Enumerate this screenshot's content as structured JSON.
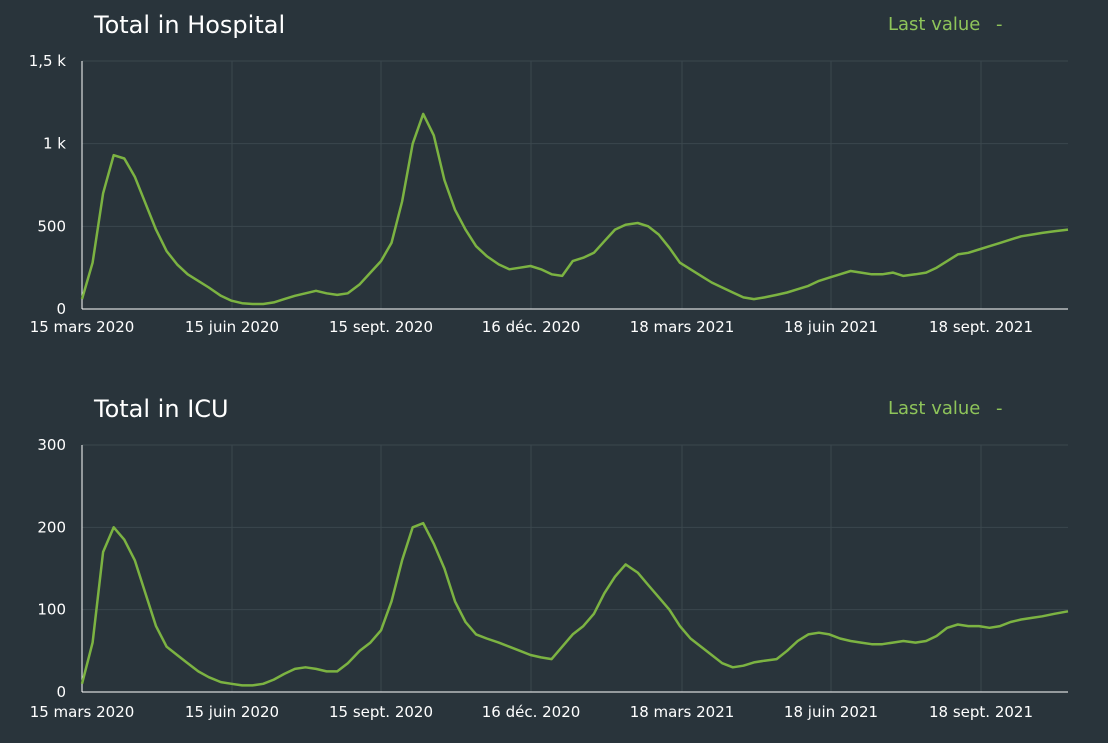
{
  "chart_data": [
    {
      "type": "line",
      "title": "Total in Hospital",
      "legend": {
        "label": "Last value",
        "value": "-"
      },
      "xlabel": "",
      "ylabel": "",
      "x_ticks": [
        "15 mars 2020",
        "15 juin 2020",
        "15 sept. 2020",
        "16 déc. 2020",
        "18 mars 2021",
        "18 juin 2021",
        "18 sept. 2021"
      ],
      "y_ticks": [
        {
          "value": 0,
          "label": "0"
        },
        {
          "value": 500,
          "label": "500"
        },
        {
          "value": 1000,
          "label": "1 k"
        },
        {
          "value": 1500,
          "label": "1,5 k"
        }
      ],
      "ylim": [
        0,
        1500
      ],
      "xlim_days": [
        0,
        653
      ],
      "series": [
        {
          "name": "Total in Hospital",
          "x_days": [
            0,
            7,
            14,
            21,
            28,
            35,
            42,
            49,
            56,
            63,
            70,
            77,
            84,
            92,
            99,
            106,
            113,
            120,
            127,
            134,
            141,
            148,
            155,
            162,
            169,
            176,
            184,
            191,
            198,
            205,
            212,
            219,
            226,
            233,
            240,
            247,
            254,
            261,
            268,
            276,
            283,
            290,
            297,
            304,
            311,
            318,
            325,
            332,
            339,
            346,
            353,
            360,
            368,
            375,
            382,
            389,
            396,
            403,
            410,
            417,
            424,
            431,
            438,
            445,
            452,
            460,
            467,
            474,
            481,
            488,
            495,
            502,
            509,
            516,
            523,
            530,
            537,
            544,
            552,
            559,
            566,
            573,
            580,
            587,
            594,
            601,
            608,
            615,
            622,
            629,
            636,
            644,
            653
          ],
          "values": [
            60,
            280,
            700,
            930,
            910,
            800,
            640,
            480,
            350,
            270,
            210,
            170,
            130,
            80,
            50,
            35,
            30,
            30,
            40,
            60,
            80,
            95,
            110,
            95,
            85,
            95,
            150,
            220,
            290,
            400,
            650,
            1000,
            1180,
            1050,
            780,
            600,
            480,
            380,
            320,
            270,
            240,
            250,
            260,
            240,
            210,
            200,
            290,
            310,
            340,
            410,
            480,
            510,
            520,
            500,
            450,
            370,
            280,
            240,
            200,
            160,
            130,
            100,
            70,
            60,
            70,
            85,
            100,
            120,
            140,
            170,
            190,
            210,
            230,
            220,
            210,
            210,
            220,
            200,
            210,
            220,
            250,
            290,
            330,
            340,
            360,
            380,
            400,
            420,
            440,
            450,
            460,
            470,
            480
          ]
        }
      ]
    },
    {
      "type": "line",
      "title": "Total in ICU",
      "legend": {
        "label": "Last value",
        "value": "-"
      },
      "xlabel": "",
      "ylabel": "",
      "x_ticks": [
        "15 mars 2020",
        "15 juin 2020",
        "15 sept. 2020",
        "16 déc. 2020",
        "18 mars 2021",
        "18 juin 2021",
        "18 sept. 2021"
      ],
      "y_ticks": [
        {
          "value": 0,
          "label": "0"
        },
        {
          "value": 100,
          "label": "100"
        },
        {
          "value": 200,
          "label": "200"
        },
        {
          "value": 300,
          "label": "300"
        }
      ],
      "ylim": [
        0,
        300
      ],
      "xlim_days": [
        0,
        653
      ],
      "series": [
        {
          "name": "Total in ICU",
          "x_days": [
            0,
            7,
            14,
            21,
            28,
            35,
            42,
            49,
            56,
            63,
            70,
            77,
            84,
            92,
            99,
            106,
            113,
            120,
            127,
            134,
            141,
            148,
            155,
            162,
            169,
            176,
            184,
            191,
            198,
            205,
            212,
            219,
            226,
            233,
            240,
            247,
            254,
            261,
            268,
            276,
            283,
            290,
            297,
            304,
            311,
            318,
            325,
            332,
            339,
            346,
            353,
            360,
            368,
            375,
            382,
            389,
            396,
            403,
            410,
            417,
            424,
            431,
            438,
            445,
            452,
            460,
            467,
            474,
            481,
            488,
            495,
            502,
            509,
            516,
            523,
            530,
            537,
            544,
            552,
            559,
            566,
            573,
            580,
            587,
            594,
            601,
            608,
            615,
            622,
            629,
            636,
            644,
            653
          ],
          "values": [
            10,
            60,
            170,
            200,
            185,
            160,
            120,
            80,
            55,
            45,
            35,
            25,
            18,
            12,
            10,
            8,
            8,
            10,
            15,
            22,
            28,
            30,
            28,
            25,
            25,
            35,
            50,
            60,
            75,
            110,
            160,
            200,
            205,
            180,
            150,
            110,
            85,
            70,
            65,
            60,
            55,
            50,
            45,
            42,
            40,
            55,
            70,
            80,
            95,
            120,
            140,
            155,
            145,
            130,
            115,
            100,
            80,
            65,
            55,
            45,
            35,
            30,
            32,
            36,
            38,
            40,
            50,
            62,
            70,
            72,
            70,
            65,
            62,
            60,
            58,
            58,
            60,
            62,
            60,
            62,
            68,
            78,
            82,
            80,
            80,
            78,
            80,
            85,
            88,
            90,
            92,
            95,
            98
          ]
        }
      ]
    }
  ]
}
